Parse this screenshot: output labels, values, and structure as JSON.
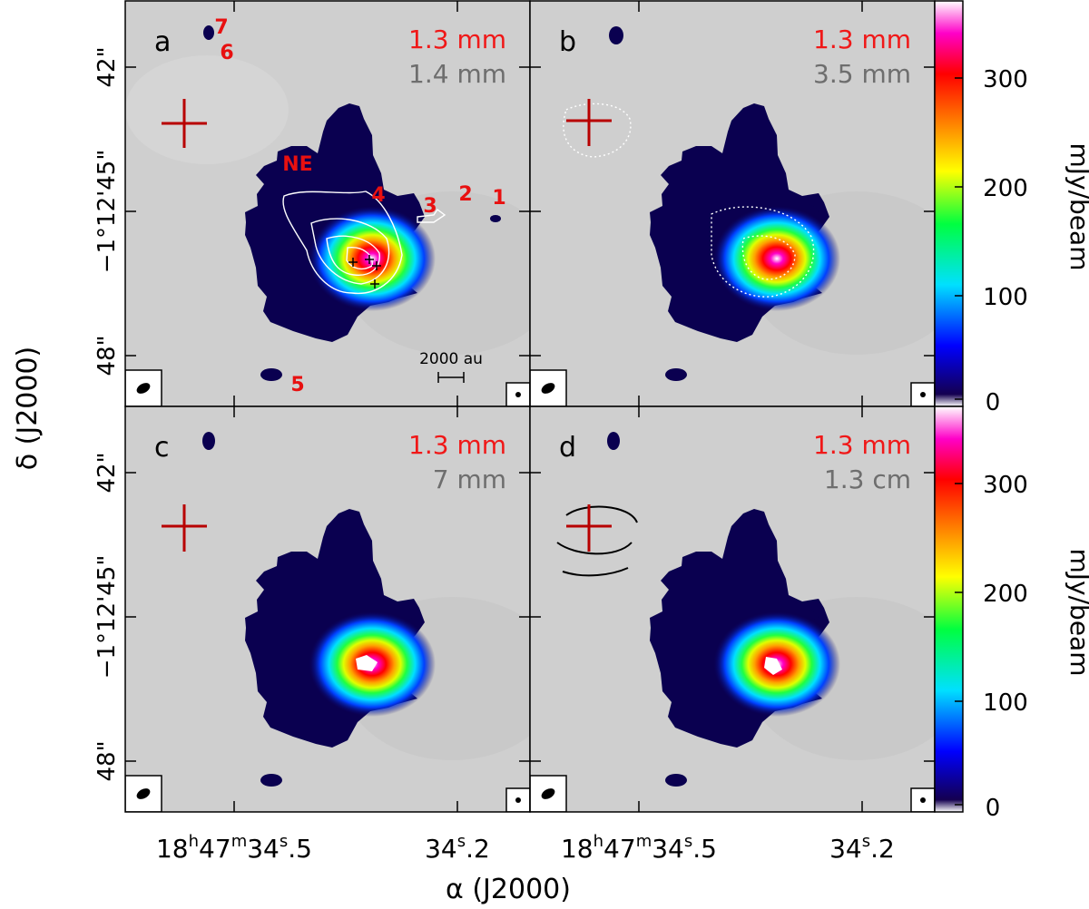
{
  "figure": {
    "panels": [
      {
        "letter": "a",
        "band_ref": "1.3 mm",
        "band_cmp": "1.4 mm"
      },
      {
        "letter": "b",
        "band_ref": "1.3 mm",
        "band_cmp": "3.5 mm"
      },
      {
        "letter": "c",
        "band_ref": "1.3 mm",
        "band_cmp": "7 mm"
      },
      {
        "letter": "d",
        "band_ref": "1.3 mm",
        "band_cmp": "1.3 cm"
      }
    ],
    "source_labels": {
      "ne": "NE",
      "s1": "1",
      "s2": "2",
      "s3": "3",
      "s4": "4",
      "s5": "5",
      "s6": "6",
      "s7": "7"
    },
    "scale_bar_label": "2000 au",
    "y_ticks": [
      "42\"",
      "−1°12'45\"",
      "48\""
    ],
    "y_axis_label": "δ (J2000)",
    "x_tick_ra1": {
      "h": "18",
      "h_unit": "h",
      "m": "47",
      "m_unit": "m",
      "s_int": "34",
      "s_unit": "s",
      "s_frac": "5"
    },
    "x_tick_ra2": {
      "s_int": "34",
      "s_unit": "s",
      "s_frac": "2"
    },
    "x_axis_label": "α (J2000)",
    "colorbar": {
      "label": "mJy/beam",
      "ticks": [
        "300",
        "200",
        "100",
        "0"
      ],
      "range": [
        0,
        360
      ]
    },
    "colors": {
      "reference_band": "#f01818",
      "comparison_band": "#6e6e6e",
      "source_labels": "#e81010",
      "cross": "#b80000"
    }
  }
}
